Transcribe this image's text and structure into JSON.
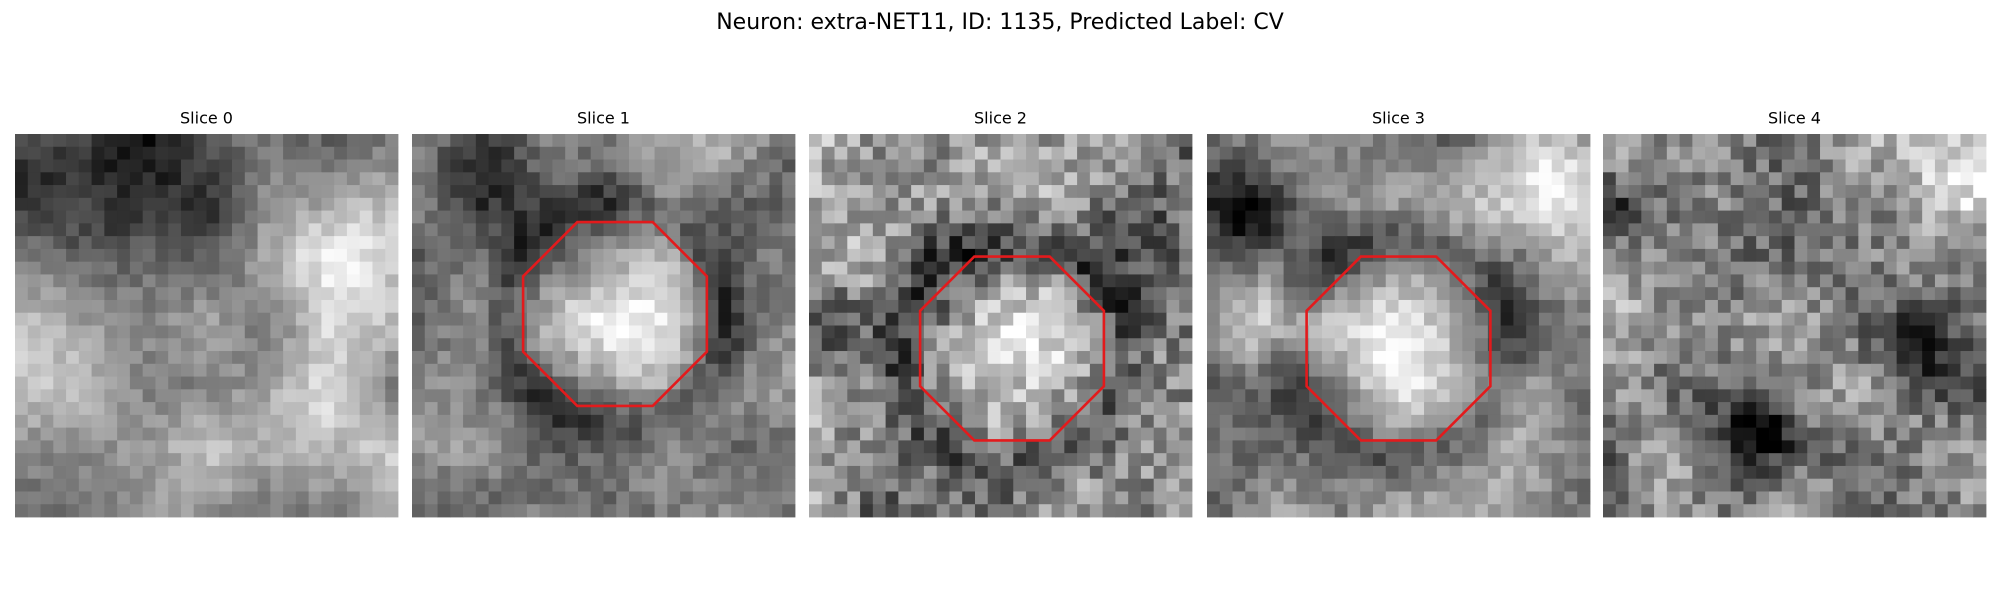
{
  "title": "Neuron: extra-NET11, ID: 1135, Predicted Label: CV",
  "panels": [
    {
      "title": "Slice 0"
    },
    {
      "title": "Slice 1"
    },
    {
      "title": "Slice 2"
    },
    {
      "title": "Slice 3"
    },
    {
      "title": "Slice 4"
    }
  ]
}
